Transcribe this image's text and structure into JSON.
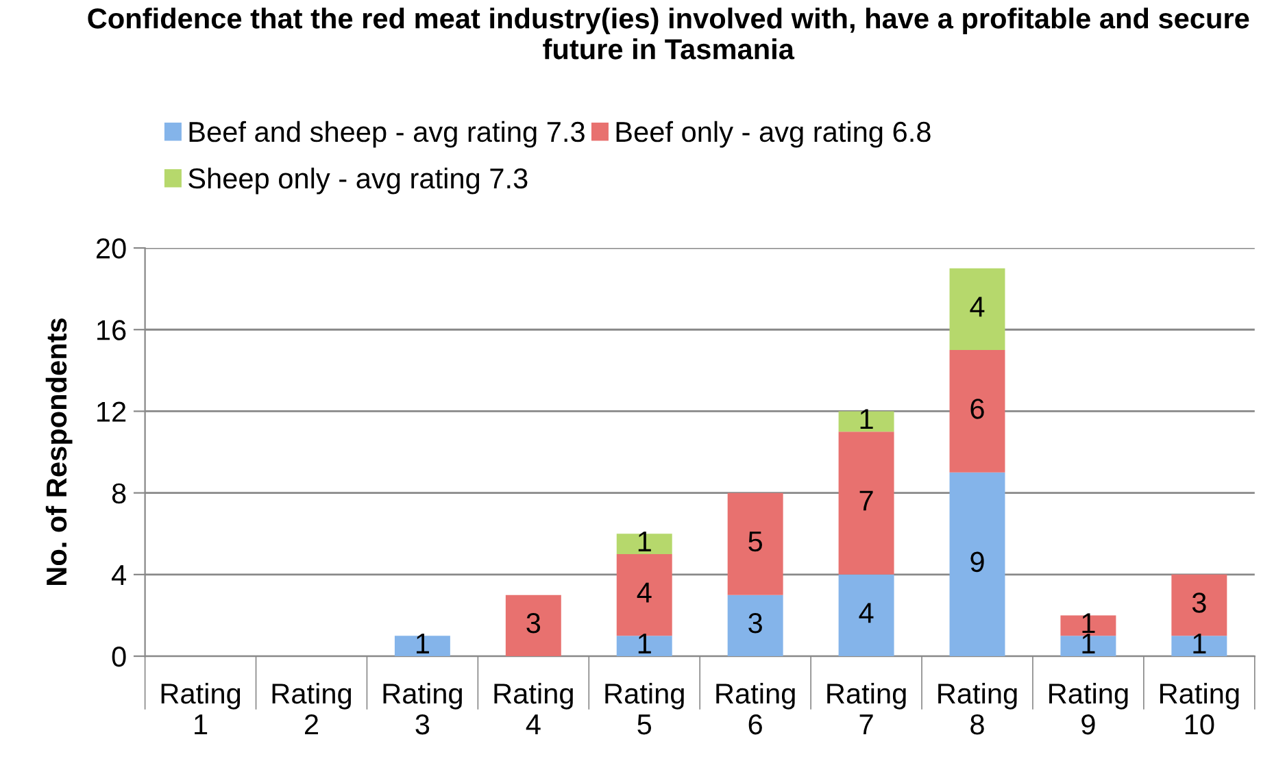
{
  "chart_data": {
    "type": "bar",
    "stacked": true,
    "title": "Confidence that the red meat industry(ies) involved with, have a profitable and secure future in Tasmania",
    "ylabel": "No. of Respondents",
    "categories": [
      "Rating 1",
      "Rating 2",
      "Rating 3",
      "Rating 4",
      "Rating 5",
      "Rating 6",
      "Rating 7",
      "Rating 8",
      "Rating 9",
      "Rating 10"
    ],
    "series": [
      {
        "name": "Beef and sheep - avg rating 7.3",
        "color": "#84b4ea",
        "values": [
          0,
          0,
          1,
          0,
          1,
          3,
          4,
          9,
          1,
          1
        ],
        "value_labels": [
          null,
          null,
          "1",
          null,
          "1",
          "3",
          "4",
          "9",
          "1",
          "1"
        ]
      },
      {
        "name": "Beef only - avg rating 6.8",
        "color": "#e8716f",
        "values": [
          0,
          0,
          0,
          3,
          4,
          5,
          7,
          6,
          1,
          3
        ],
        "value_labels": [
          null,
          null,
          null,
          "3",
          "4",
          "5",
          "7",
          "6",
          "1",
          "3"
        ]
      },
      {
        "name": "Sheep only - avg rating 7.3",
        "color": "#b6d86c",
        "values": [
          0,
          0,
          0,
          0,
          1,
          0,
          1,
          4,
          0,
          0
        ],
        "value_labels": [
          null,
          null,
          null,
          null,
          "1",
          null,
          "1",
          "4",
          null,
          null
        ]
      }
    ],
    "ylim": [
      0,
      20
    ],
    "yticks": [
      0,
      4,
      8,
      12,
      16,
      20
    ],
    "grid": "y",
    "legend": "top"
  }
}
